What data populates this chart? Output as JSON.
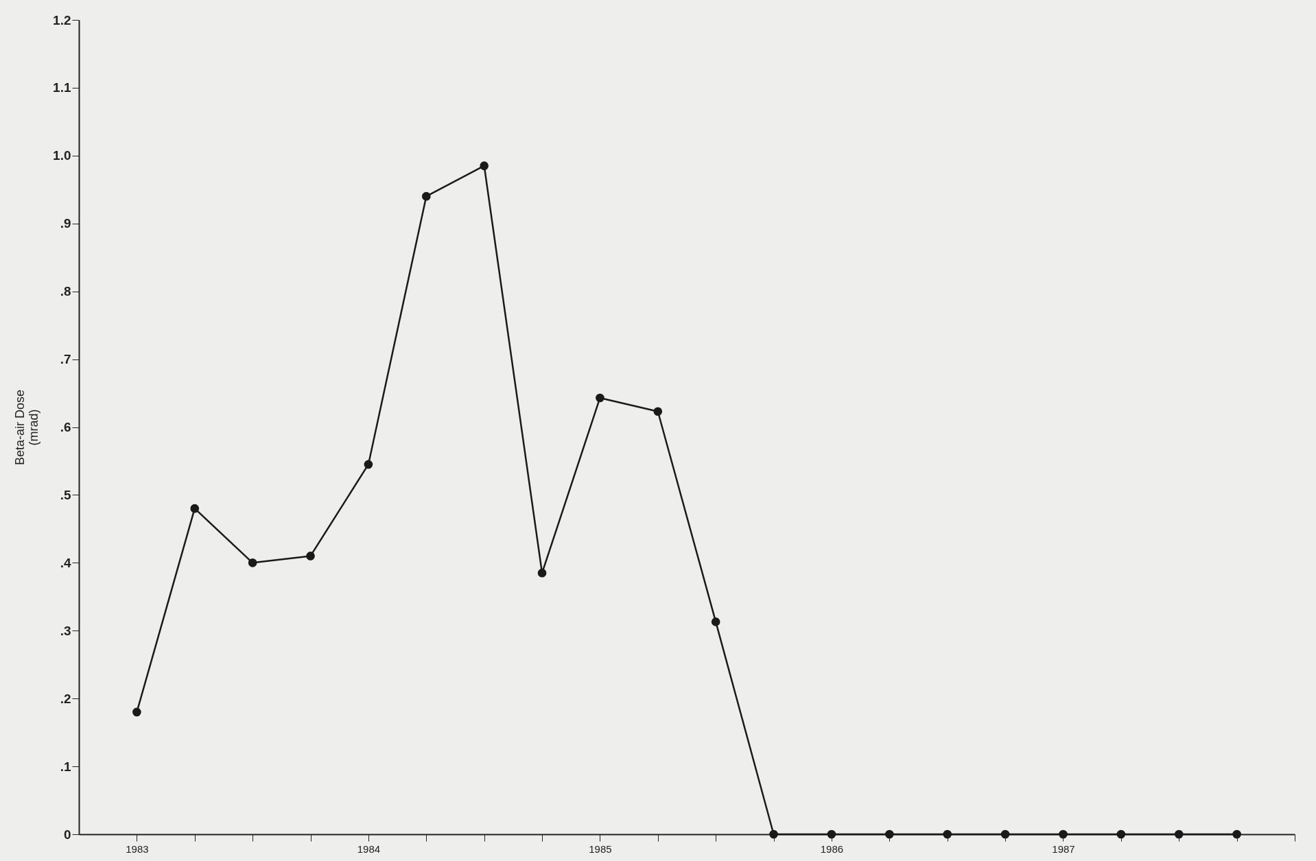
{
  "chart_data": {
    "type": "line",
    "ylabel": "Beta-air Dose (mrad)",
    "x": [
      1983.0,
      1983.25,
      1983.5,
      1983.75,
      1984.0,
      1984.25,
      1984.5,
      1984.75,
      1985.0,
      1985.25,
      1985.5,
      1985.75,
      1986.0,
      1986.25,
      1986.5,
      1986.75,
      1987.0,
      1987.25,
      1987.5,
      1987.75
    ],
    "series": [
      {
        "color": "#1a1a1a",
        "values": [
          0.18,
          0.48,
          0.4,
          0.41,
          0.545,
          0.94,
          0.985,
          0.385,
          0.643,
          0.623,
          0.313,
          0,
          0,
          0,
          0,
          0,
          0,
          0,
          0,
          0
        ]
      }
    ],
    "xlim": [
      1982.75,
      1988.0
    ],
    "xticks": [
      {
        "value": 1983,
        "label": "1983"
      },
      {
        "value": 1983.25,
        "label": null
      },
      {
        "value": 1983.5,
        "label": null
      },
      {
        "value": 1983.75,
        "label": null
      },
      {
        "value": 1984,
        "label": "1984"
      },
      {
        "value": 1984.25,
        "label": null
      },
      {
        "value": 1984.5,
        "label": null
      },
      {
        "value": 1984.75,
        "label": null
      },
      {
        "value": 1985,
        "label": "1985"
      },
      {
        "value": 1985.25,
        "label": null
      },
      {
        "value": 1985.5,
        "label": null
      },
      {
        "value": 1985.75,
        "label": null
      },
      {
        "value": 1986,
        "label": "1986"
      },
      {
        "value": 1986.25,
        "label": null
      },
      {
        "value": 1986.5,
        "label": null
      },
      {
        "value": 1986.75,
        "label": null
      },
      {
        "value": 1987,
        "label": "1987"
      },
      {
        "value": 1987.25,
        "label": null
      },
      {
        "value": 1987.5,
        "label": null
      },
      {
        "value": 1987.75,
        "label": null
      },
      {
        "value": 1988,
        "label": null
      }
    ],
    "ylim": [
      0,
      1.2
    ],
    "yticks": [
      0,
      {
        "value": 0.1,
        "label": ".1"
      },
      {
        "value": 0.2,
        "label": ".2"
      },
      {
        "value": 0.3,
        "label": ".3"
      },
      {
        "value": 0.4,
        "label": ".4"
      },
      {
        "value": 0.5,
        "label": ".5"
      },
      {
        "value": 0.6,
        "label": ".6"
      },
      {
        "value": 0.7,
        "label": ".7"
      },
      {
        "value": 0.8,
        "label": ".8"
      },
      {
        "value": 0.9,
        "label": ".9"
      },
      {
        "value": 1.0,
        "label": "1.0"
      },
      1.1,
      1.2
    ],
    "grid": false,
    "marker": "circle",
    "line_style": "solid"
  }
}
